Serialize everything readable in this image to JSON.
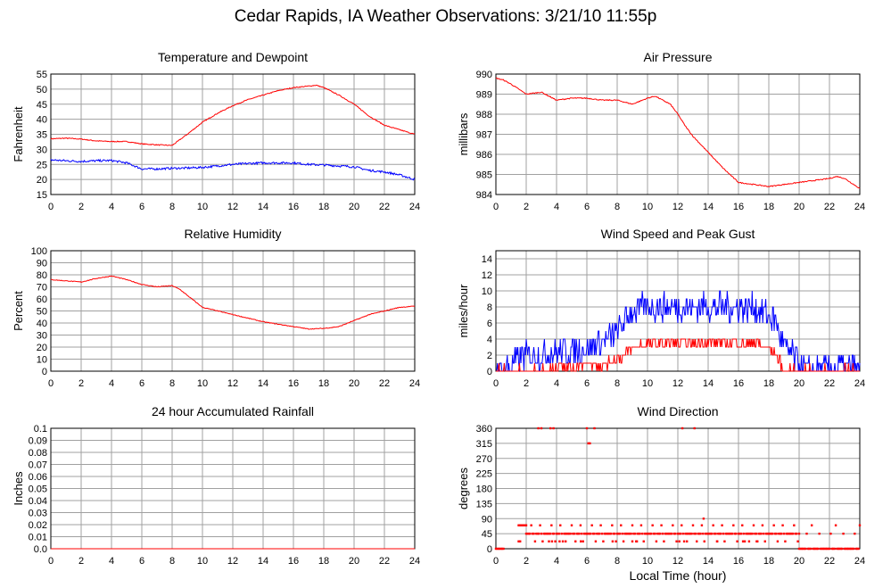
{
  "page": {
    "title": "Cedar Rapids, IA Weather Observations: 3/21/10 11:55p",
    "xlabel": "Local Time (hour)"
  },
  "colors": {
    "red": "#ff0000",
    "blue": "#0000ff",
    "grid": "#a0a0a0"
  },
  "chart_data": [
    {
      "type": "line",
      "title": "Temperature and Dewpoint",
      "ylabel": "Fahrenheit",
      "xlim": [
        0,
        24
      ],
      "ylim": [
        15,
        55
      ],
      "xticks": [
        0,
        2,
        4,
        6,
        8,
        10,
        12,
        14,
        16,
        18,
        20,
        22,
        24
      ],
      "yticks": [
        15,
        20,
        25,
        30,
        35,
        40,
        45,
        50,
        55
      ],
      "grid": true,
      "series": [
        {
          "color": "#ff0000",
          "noise": 0.3,
          "x": [
            0,
            1,
            2,
            3,
            4,
            5,
            6,
            7,
            8,
            9,
            10,
            11,
            12,
            13,
            14,
            15,
            16,
            17,
            17.5,
            18,
            19,
            20,
            21,
            22,
            23,
            24
          ],
          "y": [
            33.5,
            33.7,
            33.4,
            32.8,
            32.6,
            32.6,
            31.8,
            31.5,
            31.3,
            35,
            39,
            42,
            44.5,
            46.5,
            48,
            49.5,
            50.5,
            51,
            51.3,
            50.5,
            48,
            45,
            41,
            38,
            36.5,
            35
          ]
        },
        {
          "color": "#0000ff",
          "noise": 0.7,
          "x": [
            0,
            1,
            2,
            3,
            4,
            5,
            6,
            7,
            8,
            9,
            10,
            11,
            12,
            13,
            14,
            15,
            16,
            17,
            18,
            19,
            20,
            21,
            22,
            23,
            24
          ],
          "y": [
            26.5,
            26.2,
            26.0,
            26.2,
            26.3,
            25.5,
            23.5,
            23.5,
            23.7,
            23.8,
            24,
            24.5,
            25,
            25.3,
            25.5,
            25.5,
            25.5,
            25,
            24.8,
            24.5,
            24.2,
            23,
            22.5,
            21.5,
            20
          ]
        }
      ]
    },
    {
      "type": "line",
      "title": "Air Pressure",
      "ylabel": "millibars",
      "xlim": [
        0,
        24
      ],
      "ylim": [
        984,
        990
      ],
      "xticks": [
        0,
        2,
        4,
        6,
        8,
        10,
        12,
        14,
        16,
        18,
        20,
        22,
        24
      ],
      "yticks": [
        984,
        985,
        986,
        987,
        988,
        989,
        990
      ],
      "grid": true,
      "series": [
        {
          "color": "#ff0000",
          "noise": 0.05,
          "x": [
            0,
            0.5,
            1,
            2,
            3,
            4,
            5,
            6,
            7,
            8,
            9,
            10,
            10.5,
            11,
            11.5,
            12,
            12.5,
            13,
            14,
            15,
            16,
            17,
            18,
            19,
            20,
            21,
            22,
            22.5,
            23,
            24
          ],
          "y": [
            989.8,
            989.7,
            989.5,
            989.0,
            989.1,
            988.7,
            988.8,
            988.8,
            988.7,
            988.7,
            988.5,
            988.8,
            988.9,
            988.7,
            988.5,
            988.0,
            987.4,
            986.9,
            986.1,
            985.3,
            984.6,
            984.5,
            984.4,
            984.5,
            984.6,
            984.7,
            984.8,
            984.9,
            984.8,
            984.3
          ]
        }
      ]
    },
    {
      "type": "line",
      "title": "Relative Humidity",
      "ylabel": "Percent",
      "xlim": [
        0,
        24
      ],
      "ylim": [
        0,
        100
      ],
      "xticks": [
        0,
        2,
        4,
        6,
        8,
        10,
        12,
        14,
        16,
        18,
        20,
        22,
        24
      ],
      "yticks": [
        0,
        10,
        20,
        30,
        40,
        50,
        60,
        70,
        80,
        90,
        100
      ],
      "grid": true,
      "series": [
        {
          "color": "#ff0000",
          "noise": 0.6,
          "x": [
            0,
            1,
            2,
            3,
            4,
            5,
            6,
            7,
            8,
            8.5,
            9,
            10,
            11,
            12,
            13,
            14,
            15,
            16,
            17,
            18,
            19,
            20,
            21,
            22,
            23,
            24
          ],
          "y": [
            76,
            75,
            74,
            77,
            79,
            76,
            72,
            70,
            71,
            68,
            63,
            53,
            50,
            47,
            44,
            41,
            39,
            37,
            35,
            35.5,
            37,
            42,
            47,
            50,
            53,
            54
          ]
        }
      ]
    },
    {
      "type": "line",
      "title": "Wind Speed and Peak Gust",
      "ylabel": "miles/hour",
      "xlim": [
        0,
        24
      ],
      "ylim": [
        0,
        15
      ],
      "xticks": [
        0,
        2,
        4,
        6,
        8,
        10,
        12,
        14,
        16,
        18,
        20,
        22,
        24
      ],
      "yticks": [
        0,
        2,
        4,
        6,
        8,
        10,
        12,
        14
      ],
      "grid": true,
      "series": [
        {
          "color": "#0000ff",
          "noise": 3.5,
          "x": [
            0,
            0.5,
            1,
            2,
            3,
            4,
            5,
            6,
            7,
            8,
            8.5,
            9,
            10,
            11,
            12,
            13,
            14,
            15,
            16,
            17,
            18,
            18.5,
            19,
            19.5,
            20,
            20.5,
            21,
            22,
            23,
            24
          ],
          "y": [
            0,
            0,
            1,
            2,
            2,
            2.5,
            2.5,
            3,
            3.5,
            5,
            6,
            7.5,
            8,
            8,
            8,
            8,
            8,
            8,
            8,
            8,
            7,
            6,
            3,
            2,
            1,
            0,
            0,
            0.5,
            0.5,
            0
          ]
        },
        {
          "color": "#ff0000",
          "noise": 1.2,
          "x": [
            0,
            2,
            3,
            4,
            5,
            6,
            6.5,
            7,
            7.5,
            8,
            8.5,
            9,
            10,
            11,
            12,
            13,
            14,
            15,
            16,
            17,
            18,
            18.5,
            19,
            24
          ],
          "y": [
            0,
            0,
            0,
            0.5,
            0.5,
            1,
            1,
            0.5,
            1,
            1.5,
            2,
            3,
            3.5,
            3.5,
            3.5,
            3.5,
            3.5,
            3.5,
            3.5,
            3.5,
            3,
            2,
            0,
            0
          ]
        }
      ]
    },
    {
      "type": "line",
      "title": "24 hour Accumulated Rainfall",
      "ylabel": "Inches",
      "xlim": [
        0,
        24
      ],
      "ylim": [
        0,
        0.1
      ],
      "xticks": [
        0,
        2,
        4,
        6,
        8,
        10,
        12,
        14,
        16,
        18,
        20,
        22,
        24
      ],
      "yticks": [
        0.0,
        0.01,
        0.02,
        0.03,
        0.04,
        0.05,
        0.06,
        0.07,
        0.08,
        0.09,
        0.1
      ],
      "ytick_labels": [
        "0.0",
        "0.01",
        "0.02",
        "0.03",
        "0.04",
        "0.05",
        "0.06",
        "0.07",
        "0.08",
        "0.09",
        "0.1"
      ],
      "grid": true,
      "series": [
        {
          "color": "#ff0000",
          "noise": 0,
          "x": [
            0,
            24
          ],
          "y": [
            0,
            0
          ]
        }
      ]
    },
    {
      "type": "scatter",
      "title": "Wind Direction",
      "ylabel": "degrees",
      "xlim": [
        0,
        24
      ],
      "ylim": [
        0,
        360
      ],
      "xticks": [
        0,
        2,
        4,
        6,
        8,
        10,
        12,
        14,
        16,
        18,
        20,
        22,
        24
      ],
      "yticks": [
        0,
        45,
        90,
        135,
        180,
        225,
        270,
        315,
        360
      ],
      "grid": true,
      "series": [
        {
          "color": "#ff0000",
          "marker": "dot",
          "segments": [
            {
              "from": 0,
              "to": 0.5,
              "pattern": [
                0
              ]
            },
            {
              "from": 1.5,
              "to": 2.0,
              "pattern": [
                70
              ]
            },
            {
              "from": 2.0,
              "to": 20,
              "pattern": [
                45,
                45,
                45,
                45,
                70,
                45,
                45,
                22,
                45,
                45,
                45,
                70,
                45,
                22,
                45,
                45
              ]
            },
            {
              "from": 20,
              "to": 24,
              "pattern": [
                0,
                0,
                0,
                0,
                0,
                0,
                45,
                0,
                0,
                0,
                70,
                0,
                0,
                0,
                0,
                0,
                45,
                0,
                0
              ]
            }
          ],
          "extra": [
            [
              2.8,
              360
            ],
            [
              3.0,
              360
            ],
            [
              3.6,
              360
            ],
            [
              3.8,
              360
            ],
            [
              6.0,
              360
            ],
            [
              6.5,
              360
            ],
            [
              6.1,
              315
            ],
            [
              6.2,
              315
            ],
            [
              12.3,
              360
            ],
            [
              13.1,
              360
            ],
            [
              13.7,
              90
            ],
            [
              1.5,
              22
            ],
            [
              1.6,
              22
            ],
            [
              3.5,
              22
            ],
            [
              3.7,
              22
            ],
            [
              4.2,
              22
            ],
            [
              4.6,
              22
            ],
            [
              5.6,
              22
            ],
            [
              7.7,
              22
            ],
            [
              9.0,
              22
            ],
            [
              9.3,
              22
            ],
            [
              12.1,
              22
            ],
            [
              12.6,
              22
            ],
            [
              14.6,
              22
            ],
            [
              16.3,
              22
            ],
            [
              16.7,
              22
            ],
            [
              17.2,
              22
            ]
          ]
        }
      ]
    }
  ]
}
